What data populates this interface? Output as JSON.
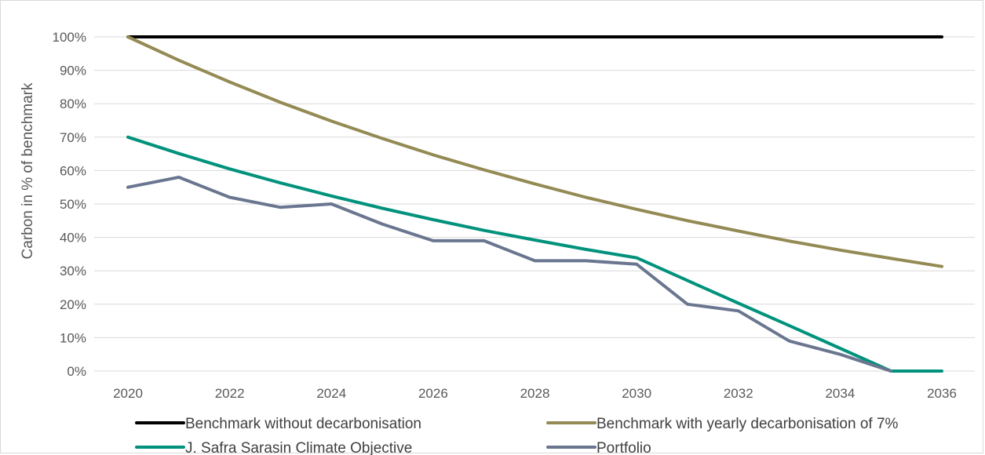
{
  "chart_data": {
    "type": "line",
    "title": "",
    "xlabel": "",
    "ylabel": "Carbon in % of benchmark",
    "xlim": [
      2020,
      2036
    ],
    "ylim": [
      0,
      100
    ],
    "x_ticks": [
      "2020",
      "2022",
      "2024",
      "2026",
      "2028",
      "2030",
      "2032",
      "2034",
      "2036"
    ],
    "y_ticks": [
      "0%",
      "10%",
      "20%",
      "30%",
      "40%",
      "50%",
      "60%",
      "70%",
      "80%",
      "90%",
      "100%"
    ],
    "grid": true,
    "legend_position": "bottom",
    "series": [
      {
        "name": "Benchmark without decarbonisation",
        "color": "#000000",
        "x": [
          2020,
          2036
        ],
        "y": [
          100,
          100
        ]
      },
      {
        "name": "Benchmark with yearly decarbonisation of 7%",
        "color": "#948a54",
        "x": [
          2020,
          2021,
          2022,
          2023,
          2024,
          2025,
          2026,
          2027,
          2028,
          2029,
          2030,
          2031,
          2032,
          2033,
          2034,
          2035,
          2036
        ],
        "y": [
          100,
          93,
          86.5,
          80.4,
          74.8,
          69.6,
          64.7,
          60.2,
          56.0,
          52.0,
          48.4,
          45.0,
          41.9,
          38.9,
          36.2,
          33.7,
          31.3
        ]
      },
      {
        "name": "J. Safra Sarasin Climate Objective",
        "color": "#00927c",
        "x": [
          2020,
          2021,
          2022,
          2023,
          2024,
          2025,
          2026,
          2027,
          2028,
          2029,
          2030,
          2031,
          2032,
          2033,
          2034,
          2035,
          2036
        ],
        "y": [
          70,
          65.1,
          60.5,
          56.3,
          52.4,
          48.7,
          45.3,
          42.1,
          39.2,
          36.4,
          33.9,
          27.1,
          20.3,
          13.6,
          6.8,
          0,
          0
        ]
      },
      {
        "name": "Portfolio",
        "color": "#6a7690",
        "x": [
          2020,
          2021,
          2022,
          2023,
          2024,
          2025,
          2026,
          2027,
          2028,
          2029,
          2030,
          2031,
          2032,
          2033,
          2034,
          2035
        ],
        "y": [
          55,
          58,
          52,
          49,
          50,
          44,
          39,
          39,
          33,
          33,
          32,
          20,
          18,
          9,
          5,
          0
        ]
      }
    ]
  }
}
